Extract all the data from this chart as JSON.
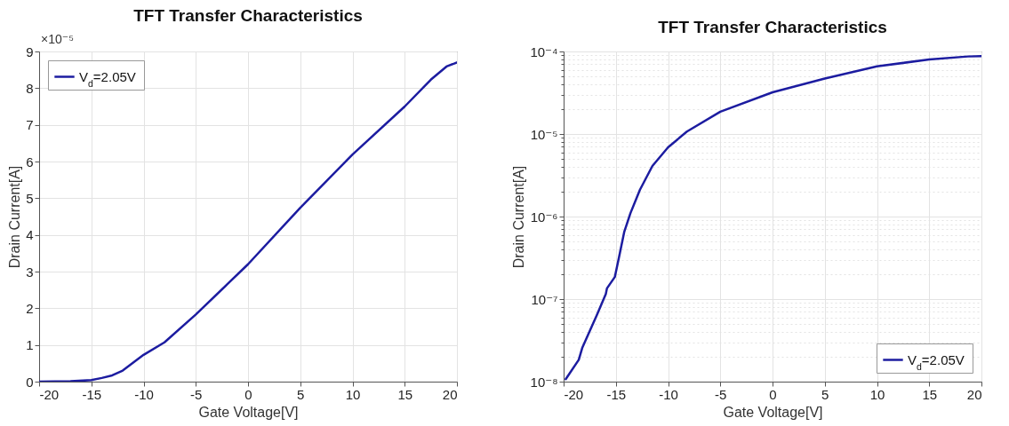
{
  "chart_data": [
    {
      "type": "line",
      "title": "TFT Transfer Characteristics",
      "xlabel": "Gate Voltage[V]",
      "ylabel": "Drain Current[A]",
      "annotations": [
        "×10⁻⁵"
      ],
      "x": [
        -20,
        -17,
        -15,
        -14,
        -13,
        -12,
        -10,
        -8,
        -5,
        -2,
        0,
        5,
        10,
        15,
        17.5,
        19,
        20
      ],
      "series": [
        {
          "name": "V$_{d}$=2.05V",
          "color": "#1c1ca0",
          "values": [
            0,
            0.01,
            0.04,
            0.1,
            0.17,
            0.3,
            0.73,
            1.07,
            1.83,
            2.65,
            3.2,
            4.74,
            6.19,
            7.5,
            8.23,
            8.59,
            8.7
          ]
        }
      ],
      "xlim": [
        -20,
        20
      ],
      "xticks": [
        -20,
        -15,
        -10,
        -5,
        0,
        5,
        10,
        15,
        20
      ],
      "ylim": [
        0,
        9
      ],
      "yticks": [
        0,
        1,
        2,
        3,
        4,
        5,
        6,
        7,
        8,
        9
      ],
      "grid": true,
      "legend": "top left"
    },
    {
      "type": "line",
      "title": "TFT Transfer Characteristics",
      "xlabel": "Gate Voltage[V]",
      "ylabel": "Drain Current[A]",
      "log": true,
      "x": [
        -19.8,
        -18.55,
        -18.2,
        -16.8,
        -15.96,
        -15.85,
        -15.1,
        -14.7,
        -14.2,
        -13.6,
        -12.7,
        -11.5,
        -10,
        -8.2,
        -5,
        0,
        5,
        10,
        15,
        18.7,
        20
      ],
      "series": [
        {
          "name": "V$_{d}$=2.05V",
          "color": "#1c1ca0",
          "values": [
            1.07e-08,
            1.84e-08,
            2.6e-08,
            6.5e-08,
            1.15e-07,
            1.35e-07,
            1.85e-07,
            3.2e-07,
            6.5e-07,
            1.1e-06,
            2.1e-06,
            4.1e-06,
            6.9e-06,
            1.07e-05,
            1.86e-05,
            3.2e-05,
            4.7e-05,
            6.6e-05,
            8e-05,
            8.7e-05,
            8.8e-05
          ]
        }
      ],
      "xlim": [
        -20,
        20
      ],
      "xticks": [
        -20,
        -15,
        -10,
        -5,
        0,
        5,
        10,
        15,
        20
      ],
      "ylim": [
        1e-08,
        0.0001
      ],
      "yticks": [
        {
          "value": 1e-08,
          "label": "10⁻⁸"
        },
        {
          "value": 2e-08,
          "label": null
        },
        {
          "value": 3e-08,
          "label": null
        },
        {
          "value": 4e-08,
          "label": null
        },
        {
          "value": 5e-08,
          "label": null
        },
        {
          "value": 6e-08,
          "label": null
        },
        {
          "value": 7e-08,
          "label": null
        },
        {
          "value": 8e-08,
          "label": null
        },
        {
          "value": 9e-08,
          "label": null
        },
        {
          "value": 1e-07,
          "label": "10⁻⁷"
        },
        {
          "value": 2e-07,
          "label": null
        },
        {
          "value": 3e-07,
          "label": null
        },
        {
          "value": 4e-07,
          "label": null
        },
        {
          "value": 5e-07,
          "label": null
        },
        {
          "value": 6e-07,
          "label": null
        },
        {
          "value": 7e-07,
          "label": null
        },
        {
          "value": 8e-07,
          "label": null
        },
        {
          "value": 9e-07,
          "label": null
        },
        {
          "value": 1e-06,
          "label": "10⁻⁶"
        },
        {
          "value": 2e-06,
          "label": null
        },
        {
          "value": 3e-06,
          "label": null
        },
        {
          "value": 4e-06,
          "label": null
        },
        {
          "value": 5e-06,
          "label": null
        },
        {
          "value": 6e-06,
          "label": null
        },
        {
          "value": 7e-06,
          "label": null
        },
        {
          "value": 8e-06,
          "label": null
        },
        {
          "value": 9e-06,
          "label": null
        },
        {
          "value": 1e-05,
          "label": "10⁻⁵"
        },
        {
          "value": 2e-05,
          "label": null
        },
        {
          "value": 3e-05,
          "label": null
        },
        {
          "value": 4e-05,
          "label": null
        },
        {
          "value": 5e-05,
          "label": null
        },
        {
          "value": 6e-05,
          "label": null
        },
        {
          "value": 7e-05,
          "label": null
        },
        {
          "value": 8e-05,
          "label": null
        },
        {
          "value": 9e-05,
          "label": null
        },
        {
          "value": 0.0001,
          "label": "10⁻⁴"
        }
      ],
      "grid": true,
      "legend": "bottom right"
    }
  ]
}
